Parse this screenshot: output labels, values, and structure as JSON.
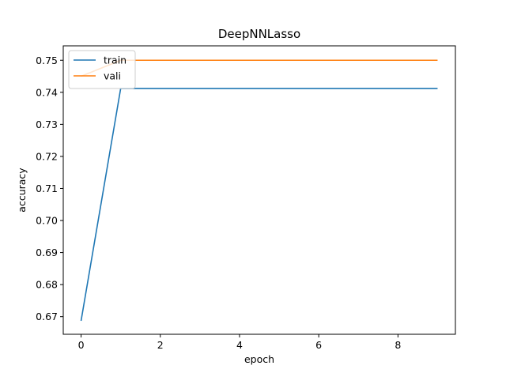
{
  "chart_data": {
    "type": "line",
    "title": "DeepNNLasso",
    "xlabel": "epoch",
    "ylabel": "accuracy",
    "xlim": [
      -0.45,
      9.45
    ],
    "ylim": [
      0.6645,
      0.7545
    ],
    "x_ticks": [
      0,
      2,
      4,
      6,
      8
    ],
    "x_tick_labels": [
      "0",
      "2",
      "4",
      "6",
      "8"
    ],
    "y_ticks": [
      0.67,
      0.68,
      0.69,
      0.7,
      0.71,
      0.72,
      0.73,
      0.74,
      0.75
    ],
    "y_tick_labels": [
      "0.67",
      "0.68",
      "0.69",
      "0.70",
      "0.71",
      "0.72",
      "0.73",
      "0.74",
      "0.75"
    ],
    "grid": false,
    "legend_position": "top-left",
    "x": [
      0,
      1,
      2,
      3,
      4,
      5,
      6,
      7,
      8,
      9
    ],
    "series": [
      {
        "name": "train",
        "color": "#1f77b4",
        "values": [
          0.6687,
          0.7412,
          0.7412,
          0.7412,
          0.7412,
          0.7412,
          0.7412,
          0.7412,
          0.7412,
          0.7412
        ]
      },
      {
        "name": "vali",
        "color": "#ff7f0e",
        "values": [
          0.745,
          0.75,
          0.75,
          0.75,
          0.75,
          0.75,
          0.75,
          0.75,
          0.75,
          0.75
        ]
      }
    ]
  }
}
